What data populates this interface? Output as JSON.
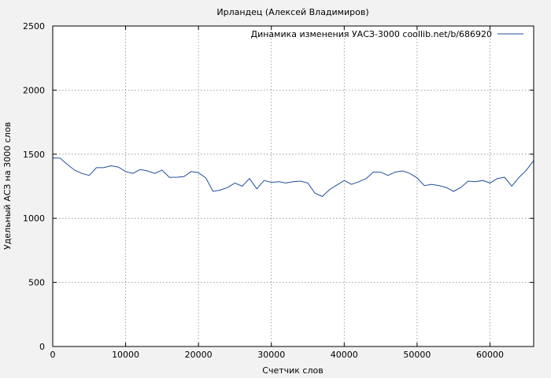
{
  "chart_data": {
    "type": "line",
    "title": "Ирландец (Алексей Владимиров)",
    "xlabel": "Счетчик слов",
    "ylabel": "Удельный АСЗ на 3000 слов",
    "xlim": [
      0,
      66000
    ],
    "ylim": [
      0,
      2500
    ],
    "x_ticks": [
      0,
      10000,
      20000,
      30000,
      40000,
      50000,
      60000
    ],
    "y_ticks": [
      0,
      500,
      1000,
      1500,
      2000,
      2500
    ],
    "grid": true,
    "legend_position": "top-right",
    "line_color": "#1f4e9c",
    "series": [
      {
        "name": "Динамика изменения УАСЗ-3000 coollib.net/b/686920",
        "x": [
          0,
          1000,
          2000,
          3000,
          4000,
          5000,
          6000,
          7000,
          8000,
          9000,
          10000,
          11000,
          12000,
          13000,
          14000,
          15000,
          16000,
          17000,
          18000,
          19000,
          20000,
          21000,
          22000,
          23000,
          24000,
          25000,
          26000,
          27000,
          28000,
          29000,
          30000,
          31000,
          32000,
          33000,
          34000,
          35000,
          36000,
          37000,
          38000,
          39000,
          40000,
          41000,
          42000,
          43000,
          44000,
          45000,
          46000,
          47000,
          48000,
          49000,
          50000,
          51000,
          52000,
          53000,
          54000,
          55000,
          56000,
          57000,
          58000,
          59000,
          60000,
          61000,
          62000,
          63000,
          64000,
          65000,
          66000
        ],
        "values": [
          1470,
          1470,
          1420,
          1375,
          1350,
          1335,
          1395,
          1395,
          1410,
          1400,
          1365,
          1350,
          1380,
          1370,
          1350,
          1375,
          1320,
          1320,
          1325,
          1365,
          1355,
          1315,
          1210,
          1220,
          1240,
          1275,
          1250,
          1310,
          1230,
          1295,
          1280,
          1285,
          1275,
          1285,
          1290,
          1275,
          1195,
          1170,
          1225,
          1260,
          1295,
          1265,
          1285,
          1310,
          1360,
          1360,
          1335,
          1360,
          1370,
          1350,
          1315,
          1255,
          1265,
          1255,
          1240,
          1210,
          1240,
          1290,
          1285,
          1295,
          1275,
          1310,
          1320,
          1250,
          1320,
          1375,
          1450
        ]
      }
    ]
  }
}
